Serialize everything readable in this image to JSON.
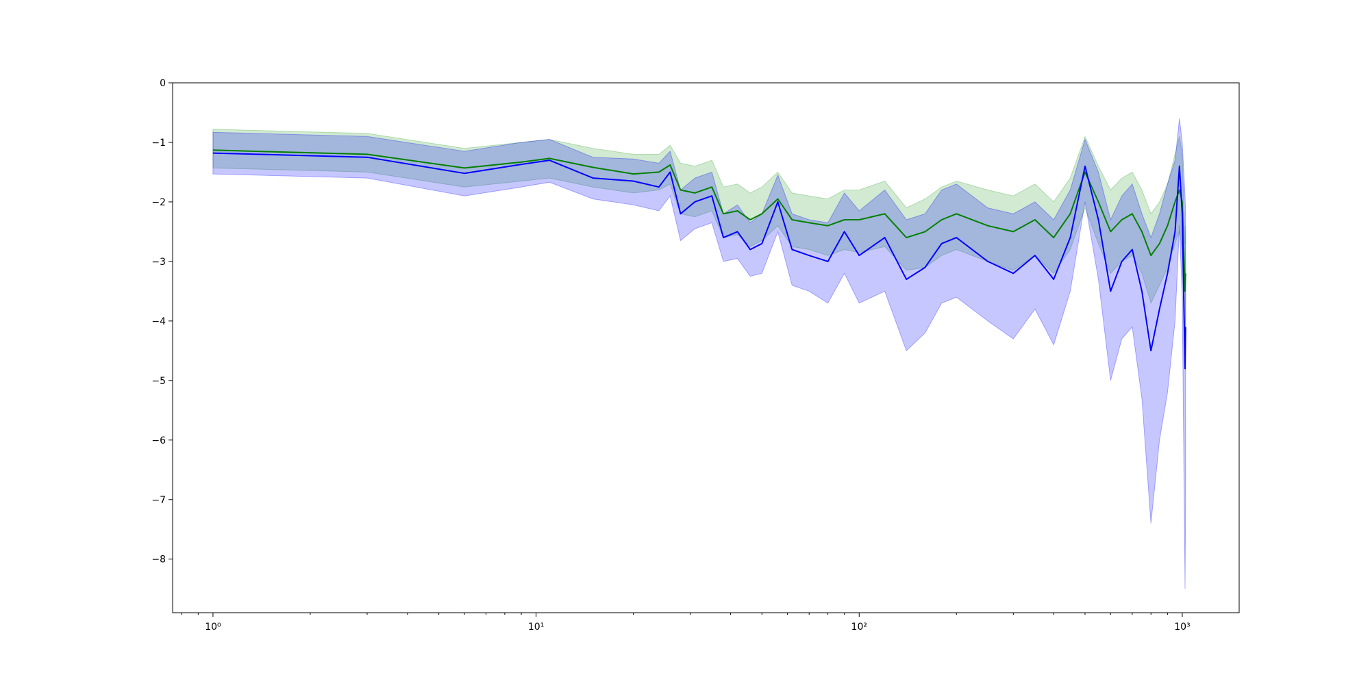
{
  "chart_data": {
    "type": "line",
    "title": "",
    "xlabel": "",
    "ylabel": "",
    "x_scale": "log",
    "xlim": [
      0.75,
      1500
    ],
    "ylim": [
      -8.9,
      0
    ],
    "grid": false,
    "legend": "none",
    "x_ticks": [
      {
        "value": 1,
        "label": "10⁰"
      },
      {
        "value": 10,
        "label": "10¹"
      },
      {
        "value": 100,
        "label": "10²"
      },
      {
        "value": 1000,
        "label": "10³"
      }
    ],
    "y_ticks": [
      {
        "value": 0,
        "label": "0"
      },
      {
        "value": -1,
        "label": "−1"
      },
      {
        "value": -2,
        "label": "−2"
      },
      {
        "value": -3,
        "label": "−3"
      },
      {
        "value": -4,
        "label": "−4"
      },
      {
        "value": -5,
        "label": "−5"
      },
      {
        "value": -6,
        "label": "−6"
      },
      {
        "value": -7,
        "label": "−7"
      },
      {
        "value": -8,
        "label": "−8"
      }
    ],
    "series": [
      {
        "color": "#008000",
        "band_color": "#2ca02c",
        "x": [
          1,
          3,
          6,
          9,
          11,
          15,
          20,
          24,
          26,
          28,
          31,
          35,
          38,
          42,
          46,
          50,
          56,
          62,
          70,
          80,
          90,
          100,
          120,
          140,
          160,
          180,
          200,
          250,
          300,
          350,
          400,
          450,
          500,
          550,
          600,
          650,
          700,
          750,
          800,
          850,
          900,
          950,
          980,
          1000,
          1020,
          1024
        ],
        "y": [
          -1.13,
          -1.2,
          -1.43,
          -1.33,
          -1.27,
          -1.42,
          -1.53,
          -1.5,
          -1.38,
          -1.8,
          -1.85,
          -1.75,
          -2.2,
          -2.15,
          -2.3,
          -2.2,
          -1.95,
          -2.3,
          -2.35,
          -2.4,
          -2.3,
          -2.3,
          -2.2,
          -2.6,
          -2.5,
          -2.3,
          -2.2,
          -2.4,
          -2.5,
          -2.3,
          -2.6,
          -2.2,
          -1.5,
          -2.0,
          -2.5,
          -2.3,
          -2.2,
          -2.5,
          -2.9,
          -2.7,
          -2.4,
          -2.0,
          -1.8,
          -2.0,
          -3.5,
          -3.2
        ],
        "lower": [
          -1.43,
          -1.5,
          -1.75,
          -1.65,
          -1.6,
          -1.75,
          -1.85,
          -1.8,
          -1.7,
          -2.2,
          -2.25,
          -2.15,
          -2.6,
          -2.55,
          -2.75,
          -2.65,
          -2.4,
          -2.75,
          -2.8,
          -2.9,
          -2.8,
          -2.85,
          -2.75,
          -3.15,
          -3.1,
          -2.9,
          -2.8,
          -3.0,
          -3.15,
          -2.9,
          -3.2,
          -2.8,
          -2.1,
          -2.7,
          -3.2,
          -3.0,
          -2.9,
          -3.2,
          -3.7,
          -3.4,
          -3.1,
          -2.7,
          -2.5,
          -2.8,
          -4.2,
          -3.9
        ],
        "upper": [
          -0.78,
          -0.85,
          -1.1,
          -1.0,
          -0.95,
          -1.1,
          -1.2,
          -1.2,
          -1.05,
          -1.35,
          -1.4,
          -1.3,
          -1.75,
          -1.7,
          -1.85,
          -1.75,
          -1.5,
          -1.85,
          -1.9,
          -1.95,
          -1.8,
          -1.8,
          -1.65,
          -2.1,
          -1.95,
          -1.75,
          -1.65,
          -1.8,
          -1.9,
          -1.7,
          -2.0,
          -1.6,
          -0.9,
          -1.4,
          -1.8,
          -1.6,
          -1.5,
          -1.8,
          -2.2,
          -2.0,
          -1.7,
          -1.2,
          -0.9,
          -1.2,
          -2.7,
          -2.4
        ]
      },
      {
        "color": "#0000ff",
        "band_color": "#0000ff",
        "x": [
          1,
          3,
          6,
          9,
          11,
          15,
          20,
          24,
          26,
          28,
          31,
          35,
          38,
          42,
          46,
          50,
          56,
          62,
          70,
          80,
          90,
          100,
          120,
          140,
          160,
          180,
          200,
          250,
          300,
          350,
          400,
          450,
          500,
          550,
          600,
          650,
          700,
          750,
          800,
          850,
          900,
          950,
          980,
          1000,
          1020,
          1024
        ],
        "y": [
          -1.18,
          -1.25,
          -1.52,
          -1.37,
          -1.3,
          -1.6,
          -1.65,
          -1.75,
          -1.5,
          -2.2,
          -2.0,
          -1.9,
          -2.6,
          -2.5,
          -2.8,
          -2.7,
          -2.0,
          -2.8,
          -2.9,
          -3.0,
          -2.5,
          -2.9,
          -2.6,
          -3.3,
          -3.1,
          -2.7,
          -2.6,
          -3.0,
          -3.2,
          -2.9,
          -3.3,
          -2.6,
          -1.4,
          -2.3,
          -3.5,
          -3.0,
          -2.8,
          -3.5,
          -4.5,
          -3.8,
          -3.2,
          -2.5,
          -1.4,
          -2.2,
          -4.8,
          -4.1
        ],
        "lower": [
          -1.53,
          -1.6,
          -1.9,
          -1.75,
          -1.67,
          -1.95,
          -2.05,
          -2.15,
          -1.9,
          -2.65,
          -2.45,
          -2.35,
          -3.0,
          -2.95,
          -3.25,
          -3.2,
          -2.5,
          -3.4,
          -3.5,
          -3.7,
          -3.2,
          -3.7,
          -3.5,
          -4.5,
          -4.2,
          -3.7,
          -3.6,
          -4.0,
          -4.3,
          -3.8,
          -4.4,
          -3.5,
          -2.0,
          -3.3,
          -5.0,
          -4.3,
          -4.1,
          -5.3,
          -7.4,
          -6.0,
          -5.2,
          -4.0,
          -2.4,
          -3.6,
          -8.5,
          -7.0
        ],
        "upper": [
          -0.83,
          -0.9,
          -1.15,
          -1.0,
          -0.95,
          -1.25,
          -1.28,
          -1.35,
          -1.15,
          -1.8,
          -1.6,
          -1.5,
          -2.2,
          -2.05,
          -2.35,
          -2.2,
          -1.55,
          -2.2,
          -2.3,
          -2.35,
          -1.85,
          -2.15,
          -1.8,
          -2.3,
          -2.2,
          -1.8,
          -1.7,
          -2.1,
          -2.2,
          -2.0,
          -2.3,
          -1.8,
          -0.95,
          -1.5,
          -2.3,
          -1.9,
          -1.7,
          -2.2,
          -2.6,
          -2.2,
          -1.7,
          -1.3,
          -0.6,
          -1.0,
          -1.9,
          -2.2
        ]
      }
    ]
  }
}
